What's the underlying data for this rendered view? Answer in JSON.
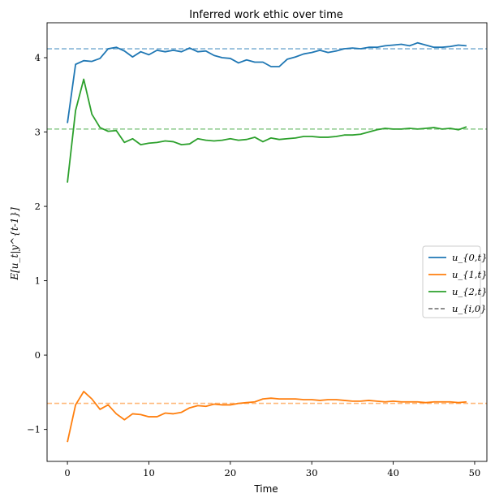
{
  "chart_data": {
    "type": "line",
    "title": "Inferred work ethic over time",
    "xlabel": "Time",
    "ylabel": "E[u_t|y^{t-1}]",
    "xlim": [
      -2.5,
      51.5
    ],
    "ylim": [
      -1.43,
      4.47
    ],
    "xticks": [
      0,
      10,
      20,
      30,
      40,
      50
    ],
    "yticks": [
      -1,
      0,
      1,
      2,
      3,
      4
    ],
    "grid": false,
    "legend_position": "center-right",
    "legend": [
      {
        "label": "u_{0,t}",
        "color": "#1f77b4",
        "style": "solid"
      },
      {
        "label": "u_{1,t}",
        "color": "#ff7f0e",
        "style": "solid"
      },
      {
        "label": "u_{2,t}",
        "color": "#2ca02c",
        "style": "solid"
      },
      {
        "label": "u_{i,0}",
        "color": "#7f7f7f",
        "style": "dashed"
      }
    ],
    "x": [
      0,
      1,
      2,
      3,
      4,
      5,
      6,
      7,
      8,
      9,
      10,
      11,
      12,
      13,
      14,
      15,
      16,
      17,
      18,
      19,
      20,
      21,
      22,
      23,
      24,
      25,
      26,
      27,
      28,
      29,
      30,
      31,
      32,
      33,
      34,
      35,
      36,
      37,
      38,
      39,
      40,
      41,
      42,
      43,
      44,
      45,
      46,
      47,
      48,
      49
    ],
    "series": [
      {
        "name": "u_{0,t}",
        "color": "#1f77b4",
        "values": [
          3.12,
          3.91,
          3.96,
          3.95,
          3.99,
          4.12,
          4.14,
          4.09,
          4.01,
          4.08,
          4.04,
          4.1,
          4.08,
          4.1,
          4.08,
          4.13,
          4.08,
          4.09,
          4.03,
          4.0,
          3.99,
          3.93,
          3.97,
          3.94,
          3.94,
          3.88,
          3.88,
          3.98,
          4.01,
          4.05,
          4.07,
          4.1,
          4.07,
          4.09,
          4.12,
          4.13,
          4.12,
          4.14,
          4.14,
          4.16,
          4.17,
          4.18,
          4.16,
          4.2,
          4.17,
          4.14,
          4.14,
          4.15,
          4.17,
          4.16
        ]
      },
      {
        "name": "u_{1,t}",
        "color": "#ff7f0e",
        "values": [
          -1.17,
          -0.67,
          -0.49,
          -0.59,
          -0.73,
          -0.67,
          -0.79,
          -0.87,
          -0.79,
          -0.8,
          -0.83,
          -0.83,
          -0.78,
          -0.79,
          -0.77,
          -0.71,
          -0.68,
          -0.69,
          -0.66,
          -0.67,
          -0.67,
          -0.65,
          -0.64,
          -0.63,
          -0.59,
          -0.58,
          -0.59,
          -0.59,
          -0.59,
          -0.6,
          -0.6,
          -0.61,
          -0.6,
          -0.6,
          -0.61,
          -0.62,
          -0.62,
          -0.61,
          -0.62,
          -0.63,
          -0.62,
          -0.63,
          -0.63,
          -0.63,
          -0.64,
          -0.63,
          -0.63,
          -0.63,
          -0.64,
          -0.63
        ]
      },
      {
        "name": "u_{2,t}",
        "color": "#2ca02c",
        "values": [
          2.32,
          3.29,
          3.71,
          3.24,
          3.06,
          3.01,
          3.02,
          2.86,
          2.91,
          2.83,
          2.85,
          2.86,
          2.88,
          2.87,
          2.83,
          2.84,
          2.91,
          2.89,
          2.88,
          2.89,
          2.91,
          2.89,
          2.9,
          2.93,
          2.87,
          2.92,
          2.9,
          2.91,
          2.92,
          2.94,
          2.94,
          2.93,
          2.93,
          2.94,
          2.96,
          2.96,
          2.97,
          3.0,
          3.03,
          3.05,
          3.04,
          3.04,
          3.05,
          3.04,
          3.05,
          3.06,
          3.04,
          3.05,
          3.03,
          3.07
        ]
      }
    ],
    "reference_lines": [
      {
        "name": "u_{0,0}",
        "y": 4.12,
        "color": "#1f77b4"
      },
      {
        "name": "u_{1,0}",
        "y": -0.65,
        "color": "#ff7f0e"
      },
      {
        "name": "u_{2,0}",
        "y": 3.04,
        "color": "#2ca02c"
      }
    ]
  }
}
